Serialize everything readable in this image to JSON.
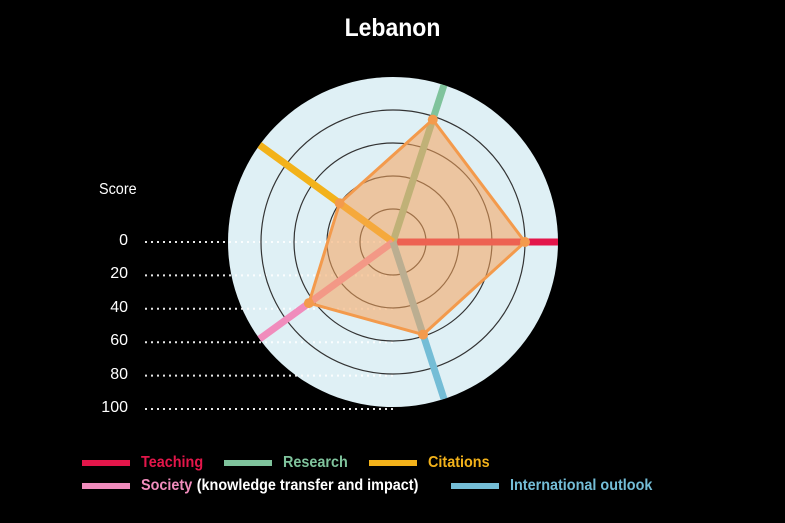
{
  "title": "Lebanon",
  "score_axis": {
    "label": "Score",
    "ticks": [
      "0",
      "20",
      "40",
      "60",
      "80",
      "100"
    ]
  },
  "legend": [
    {
      "label": "Teaching",
      "sub": "",
      "color": "#e3164a"
    },
    {
      "label": "Research",
      "sub": "",
      "color": "#7fc39c"
    },
    {
      "label": "Citations",
      "sub": "",
      "color": "#f3b21a"
    },
    {
      "label": "Society",
      "sub": "(knowledge transfer and impact)",
      "color": "#f08cbc"
    },
    {
      "label": "International outlook",
      "sub": "",
      "color": "#74bdd6"
    }
  ],
  "colors": {
    "background": "#000000",
    "disc": "#dff0f5",
    "polygon_fill": "#f5a25a",
    "polygon_stroke": "#f39a4c",
    "ring": "#333333"
  },
  "chart_data": {
    "type": "radar",
    "title": "Lebanon",
    "categories": [
      "Teaching",
      "Research",
      "Citations",
      "Society (knowledge transfer and impact)",
      "International outlook"
    ],
    "series": [
      {
        "name": "Lebanon",
        "values": [
          80,
          78,
          40,
          63,
          59
        ]
      }
    ],
    "axis_range": [
      0,
      100
    ],
    "axis_label": "Score",
    "ticks": [
      0,
      20,
      40,
      60,
      80,
      100
    ],
    "grid": true,
    "legend_position": "bottom"
  }
}
